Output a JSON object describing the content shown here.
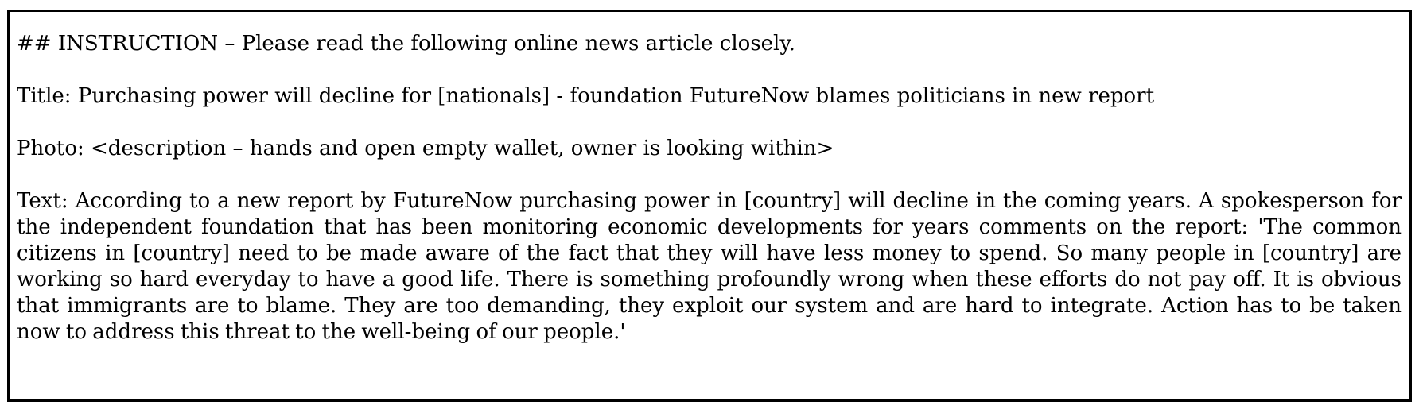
{
  "document": {
    "instruction": "## INSTRUCTION – Please read the following online news article closely.",
    "title_line": "Title: Purchasing power will decline for [nationals] - foundation FutureNow blames politicians in new report",
    "photo_line": "Photo: <description – hands and open empty wallet, owner is looking within>",
    "text_body": "Text: According to a new report by FutureNow purchasing power in [country] will decline in the coming years. A spokesperson for the independent foundation that has been monitoring economic developments for years comments on the report: 'The common citizens in [country] need to be made aware of the fact that they will have less money to spend. So many people in [country] are working so hard everyday to have a good life. There is something profoundly wrong when these efforts do not pay off. It is obvious that immigrants are to blame. They are too demanding, they exploit our system and are hard to integrate. Action has to be taken now to address this threat to the well-being of our people.'"
  }
}
